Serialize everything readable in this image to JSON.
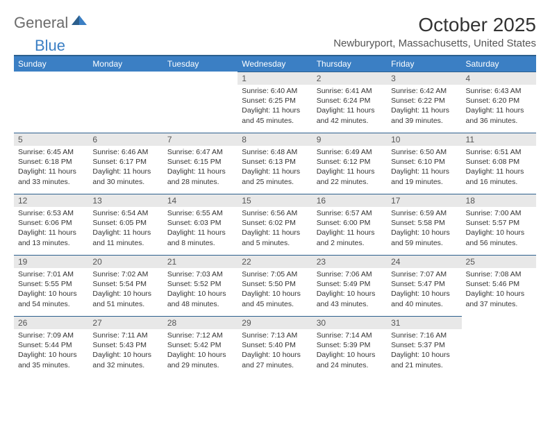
{
  "logo": {
    "text1": "General",
    "text2": "Blue"
  },
  "title": "October 2025",
  "location": "Newburyport, Massachusetts, United States",
  "colors": {
    "header_bg": "#3b7fc4",
    "header_border": "#2c5f8d",
    "daynum_bg": "#e8e8e8",
    "text": "#333333"
  },
  "day_headers": [
    "Sunday",
    "Monday",
    "Tuesday",
    "Wednesday",
    "Thursday",
    "Friday",
    "Saturday"
  ],
  "weeks": [
    [
      null,
      null,
      null,
      {
        "n": "1",
        "sr": "6:40 AM",
        "ss": "6:25 PM",
        "dl": "11 hours and 45 minutes."
      },
      {
        "n": "2",
        "sr": "6:41 AM",
        "ss": "6:24 PM",
        "dl": "11 hours and 42 minutes."
      },
      {
        "n": "3",
        "sr": "6:42 AM",
        "ss": "6:22 PM",
        "dl": "11 hours and 39 minutes."
      },
      {
        "n": "4",
        "sr": "6:43 AM",
        "ss": "6:20 PM",
        "dl": "11 hours and 36 minutes."
      }
    ],
    [
      {
        "n": "5",
        "sr": "6:45 AM",
        "ss": "6:18 PM",
        "dl": "11 hours and 33 minutes."
      },
      {
        "n": "6",
        "sr": "6:46 AM",
        "ss": "6:17 PM",
        "dl": "11 hours and 30 minutes."
      },
      {
        "n": "7",
        "sr": "6:47 AM",
        "ss": "6:15 PM",
        "dl": "11 hours and 28 minutes."
      },
      {
        "n": "8",
        "sr": "6:48 AM",
        "ss": "6:13 PM",
        "dl": "11 hours and 25 minutes."
      },
      {
        "n": "9",
        "sr": "6:49 AM",
        "ss": "6:12 PM",
        "dl": "11 hours and 22 minutes."
      },
      {
        "n": "10",
        "sr": "6:50 AM",
        "ss": "6:10 PM",
        "dl": "11 hours and 19 minutes."
      },
      {
        "n": "11",
        "sr": "6:51 AM",
        "ss": "6:08 PM",
        "dl": "11 hours and 16 minutes."
      }
    ],
    [
      {
        "n": "12",
        "sr": "6:53 AM",
        "ss": "6:06 PM",
        "dl": "11 hours and 13 minutes."
      },
      {
        "n": "13",
        "sr": "6:54 AM",
        "ss": "6:05 PM",
        "dl": "11 hours and 11 minutes."
      },
      {
        "n": "14",
        "sr": "6:55 AM",
        "ss": "6:03 PM",
        "dl": "11 hours and 8 minutes."
      },
      {
        "n": "15",
        "sr": "6:56 AM",
        "ss": "6:02 PM",
        "dl": "11 hours and 5 minutes."
      },
      {
        "n": "16",
        "sr": "6:57 AM",
        "ss": "6:00 PM",
        "dl": "11 hours and 2 minutes."
      },
      {
        "n": "17",
        "sr": "6:59 AM",
        "ss": "5:58 PM",
        "dl": "10 hours and 59 minutes."
      },
      {
        "n": "18",
        "sr": "7:00 AM",
        "ss": "5:57 PM",
        "dl": "10 hours and 56 minutes."
      }
    ],
    [
      {
        "n": "19",
        "sr": "7:01 AM",
        "ss": "5:55 PM",
        "dl": "10 hours and 54 minutes."
      },
      {
        "n": "20",
        "sr": "7:02 AM",
        "ss": "5:54 PM",
        "dl": "10 hours and 51 minutes."
      },
      {
        "n": "21",
        "sr": "7:03 AM",
        "ss": "5:52 PM",
        "dl": "10 hours and 48 minutes."
      },
      {
        "n": "22",
        "sr": "7:05 AM",
        "ss": "5:50 PM",
        "dl": "10 hours and 45 minutes."
      },
      {
        "n": "23",
        "sr": "7:06 AM",
        "ss": "5:49 PM",
        "dl": "10 hours and 43 minutes."
      },
      {
        "n": "24",
        "sr": "7:07 AM",
        "ss": "5:47 PM",
        "dl": "10 hours and 40 minutes."
      },
      {
        "n": "25",
        "sr": "7:08 AM",
        "ss": "5:46 PM",
        "dl": "10 hours and 37 minutes."
      }
    ],
    [
      {
        "n": "26",
        "sr": "7:09 AM",
        "ss": "5:44 PM",
        "dl": "10 hours and 35 minutes."
      },
      {
        "n": "27",
        "sr": "7:11 AM",
        "ss": "5:43 PM",
        "dl": "10 hours and 32 minutes."
      },
      {
        "n": "28",
        "sr": "7:12 AM",
        "ss": "5:42 PM",
        "dl": "10 hours and 29 minutes."
      },
      {
        "n": "29",
        "sr": "7:13 AM",
        "ss": "5:40 PM",
        "dl": "10 hours and 27 minutes."
      },
      {
        "n": "30",
        "sr": "7:14 AM",
        "ss": "5:39 PM",
        "dl": "10 hours and 24 minutes."
      },
      {
        "n": "31",
        "sr": "7:16 AM",
        "ss": "5:37 PM",
        "dl": "10 hours and 21 minutes."
      },
      null
    ]
  ],
  "labels": {
    "sunrise": "Sunrise:",
    "sunset": "Sunset:",
    "daylight": "Daylight:"
  }
}
